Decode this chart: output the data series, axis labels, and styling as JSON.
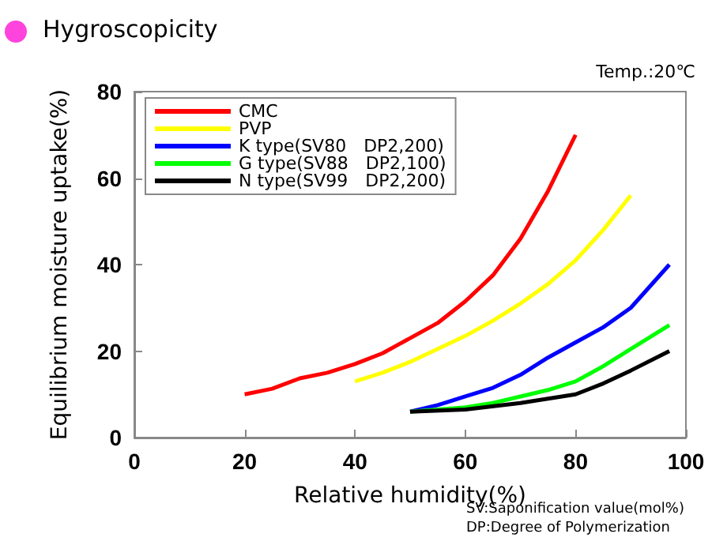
{
  "chart_data": {
    "type": "line",
    "title": "Hygroscopicity",
    "xlabel": "Relative humidity(%)",
    "ylabel": "Equilibrium moisture uptake(%)",
    "annotations": [
      "Temp.:20℃",
      "SV:Saponification value(mol%)",
      "DP:Degree of Polymerization"
    ],
    "xlim": [
      0,
      100
    ],
    "xticks": [
      0,
      20,
      40,
      60,
      80,
      100
    ],
    "ylim": [
      0,
      80
    ],
    "yticks": [
      0,
      20,
      40,
      60,
      80
    ],
    "grid": false,
    "legend": "top left",
    "marker": "none",
    "line_style": "solid",
    "series": [
      {
        "name": "CMC",
        "color": "#ff0000",
        "x": [
          20,
          25,
          30,
          35,
          40,
          45,
          50,
          55,
          60,
          65,
          70,
          75,
          80
        ],
        "values": [
          10,
          11.3,
          13.7,
          15,
          17,
          19.5,
          23,
          26.5,
          31.5,
          37.5,
          46,
          57,
          70
        ]
      },
      {
        "name": "PVP",
        "color": "#ffff00",
        "x": [
          40,
          45,
          50,
          55,
          60,
          65,
          70,
          75,
          80,
          85,
          90
        ],
        "values": [
          13,
          15,
          17.5,
          20.5,
          23.5,
          27,
          31,
          35.5,
          41,
          48,
          56
        ]
      },
      {
        "name": "K type(SV80　DP2,200)",
        "color": "#0000ff",
        "x": [
          50,
          55,
          60,
          65,
          70,
          75,
          80,
          85,
          90,
          97
        ],
        "values": [
          6,
          7.5,
          9.5,
          11.5,
          14.5,
          18.5,
          22,
          25.5,
          30,
          40
        ]
      },
      {
        "name": "G type(SV88　DP2,100)",
        "color": "#00ff00",
        "x": [
          50,
          60,
          65,
          70,
          75,
          80,
          85,
          90,
          97
        ],
        "values": [
          6,
          7,
          8,
          9.5,
          11,
          13,
          16.5,
          20.5,
          26
        ]
      },
      {
        "name": "N type(SV99　DP2,200)",
        "color": "#000000",
        "x": [
          50,
          60,
          70,
          75,
          80,
          85,
          90,
          97
        ],
        "values": [
          6,
          6.5,
          8,
          9,
          10,
          12.5,
          15.5,
          20
        ]
      }
    ]
  }
}
